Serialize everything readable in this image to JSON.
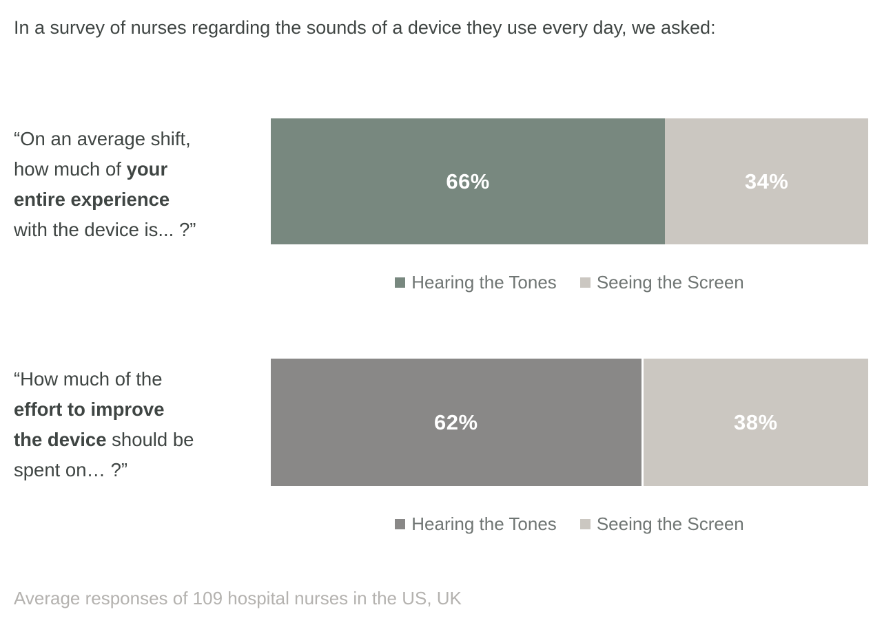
{
  "page": {
    "title": "In a survey of nurses regarding the sounds of a device they use every day, we asked:",
    "footnote": "Average responses of 109 hospital nurses in the US, UK"
  },
  "colors": {
    "title_text": "#3f4543",
    "question_text": "#3f4543",
    "legend_text": "#6f7573",
    "footnote_text": "#b4b2af",
    "bar_label": "#ffffff",
    "hearing_row1": "#78887f",
    "hearing_row2": "#898887",
    "seeing": "#cbc7c1"
  },
  "chart_data": [
    {
      "type": "bar",
      "orientation": "horizontal",
      "stacked": true,
      "question": "“On an average shift, how much of your entire experience with the device is... ?”",
      "question_parts": [
        {
          "text": "“On an average shift,\nhow much of ",
          "bold": false
        },
        {
          "text": "your\nentire experience",
          "bold": true
        },
        {
          "text": "\nwith the device is... ?”",
          "bold": false
        }
      ],
      "series": [
        {
          "name": "Hearing the Tones",
          "value": 66,
          "label": "66%",
          "color": "#78887f"
        },
        {
          "name": "Seeing the Screen",
          "value": 34,
          "label": "34%",
          "color": "#cbc7c1"
        }
      ],
      "xlim": [
        0,
        100
      ],
      "grid": false,
      "legend_position": "bottom-center"
    },
    {
      "type": "bar",
      "orientation": "horizontal",
      "stacked": true,
      "question": "“How much of the effort to improve the device should be spent on… ?”",
      "question_parts": [
        {
          "text": "“How much of the\n",
          "bold": false
        },
        {
          "text": "effort to improve\nthe device",
          "bold": true
        },
        {
          "text": " should be\nspent on… ?”",
          "bold": false
        }
      ],
      "series": [
        {
          "name": "Hearing the Tones",
          "value": 62,
          "label": "62%",
          "color": "#898887"
        },
        {
          "name": "Seeing the Screen",
          "value": 38,
          "label": "38%",
          "color": "#cbc7c1"
        }
      ],
      "xlim": [
        0,
        100
      ],
      "grid": false,
      "legend_position": "bottom-center"
    }
  ]
}
